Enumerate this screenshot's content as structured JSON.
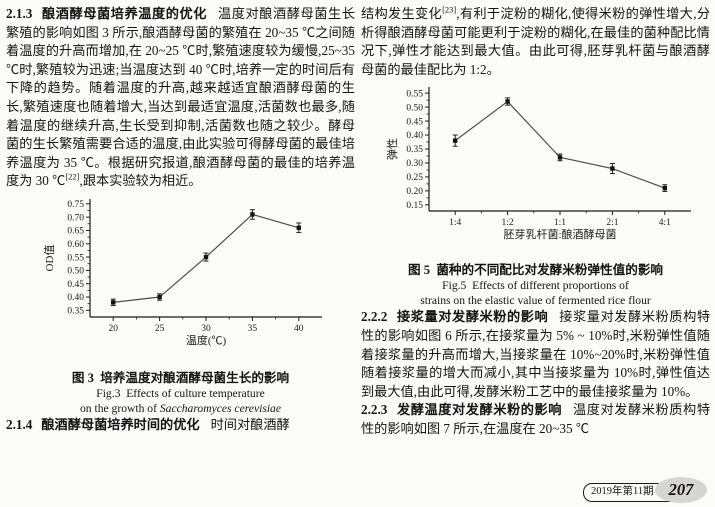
{
  "left_column": {
    "s213": {
      "head": "2.1.3",
      "title": "酿酒酵母菌培养温度的优化",
      "body1": "温度对酿酒酵母菌生长繁殖的影响如图 3 所示,酿酒酵母菌的繁殖在 20~35 ℃之间随着温度的升高而增加,在 20~25 ℃时,繁殖速度较为缓慢,25~35 ℃时,繁殖较为迅速;当温度达到 40 ℃时,培养一定的时间后有下降的趋势。随着温度的升高,越来越适宜酿酒酵母菌的生长,繁殖速度也随着增大,当达到最适宜温度,活菌数也最多,随着温度的继续升高,生长受到抑制,活菌数也随之较少。酵母菌的生长繁殖需要合适的温度,由此实验可得酵母菌的最佳培养温度为 35 ℃。根据研究报道,酿酒酵母菌的最佳的培养温度为 30 ℃",
      "ref": "[22]",
      "body2": ",跟本实验较为相近。"
    },
    "s214": {
      "head": "2.1.4",
      "title": "酿酒酵母菌培养时间的优化",
      "body": "时间对酿酒酵"
    }
  },
  "right_column": {
    "cont": {
      "body1": "结构发生变化",
      "ref": "[23]",
      "body2": ",有利于淀粉的糊化,使得米粉的弹性增大,分析得酿酒酵母菌可能更利于淀粉的糊化,在最佳的菌种配比情况下,弹性才能达到最大值。由此可得,胚芽乳杆菌与酿酒酵母菌的最佳配比为 1:2。"
    },
    "s222": {
      "head": "2.2.2",
      "title": "接浆量对发酵米粉的影响",
      "body": "接浆量对发酵米粉质构特性的影响如图 6 所示,在接浆量为 5% ~ 10%时,米粉弹性值随着接浆量的升高而增大,当接浆量在 10%~20%时,米粉弹性值随着接浆量的增大而减小,其中当接浆量为 10%时,弹性值达到最大值,由此可得,发酵米粉工艺中的最佳接浆量为 10%。"
    },
    "s223": {
      "head": "2.2.3",
      "title": "发酵温度对发酵米粉的影响",
      "body": "温度对发酵米粉质构特性的影响如图 7 所示,在温度在 20~35 ℃"
    }
  },
  "footer": {
    "issue": "2019年第11期",
    "page_number": "207"
  },
  "chart_data": [
    {
      "id": "fig3",
      "type": "line",
      "categories": [
        "20",
        "25",
        "30",
        "35",
        "40"
      ],
      "values": [
        0.38,
        0.4,
        0.55,
        0.71,
        0.66
      ],
      "errors": [
        0.012,
        0.012,
        0.015,
        0.018,
        0.018
      ],
      "xlabel": "温度(℃)",
      "ylabel": "OD值",
      "ylim": [
        0.325,
        0.768
      ],
      "yticks": [
        0.35,
        0.4,
        0.45,
        0.5,
        0.55,
        0.6,
        0.65,
        0.7,
        0.75
      ],
      "grid": false,
      "legend": "none",
      "marker": "square",
      "title_cn": "图 3  培养温度对酿酒酵母菌生长的影响",
      "caption_en1": "Fig.3  Effects of culture temperature",
      "caption_en2_prefix": "on the growth of ",
      "caption_en2_species": "Saccharomyces cerevisiae"
    },
    {
      "id": "fig5",
      "type": "line",
      "categories": [
        "1:4",
        "1:2",
        "1:1",
        "2:1",
        "4:1"
      ],
      "values": [
        0.38,
        0.52,
        0.32,
        0.28,
        0.21
      ],
      "errors": [
        0.02,
        0.013,
        0.012,
        0.018,
        0.012
      ],
      "xlabel": "胚芽乳杆菌:酿酒酵母菌",
      "ylabel": "弹性",
      "ylim": [
        0.128,
        0.572
      ],
      "yticks": [
        0.15,
        0.2,
        0.25,
        0.3,
        0.35,
        0.4,
        0.45,
        0.5,
        0.55
      ],
      "grid": false,
      "legend": "none",
      "marker": "square",
      "title_cn": "图 5  菌种的不同配比对发酵米粉弹性值的影响",
      "caption_en1": "Fig.5  Effects of different proportions of",
      "caption_en2": "strains on the elastic value of fermented rice flour"
    }
  ]
}
